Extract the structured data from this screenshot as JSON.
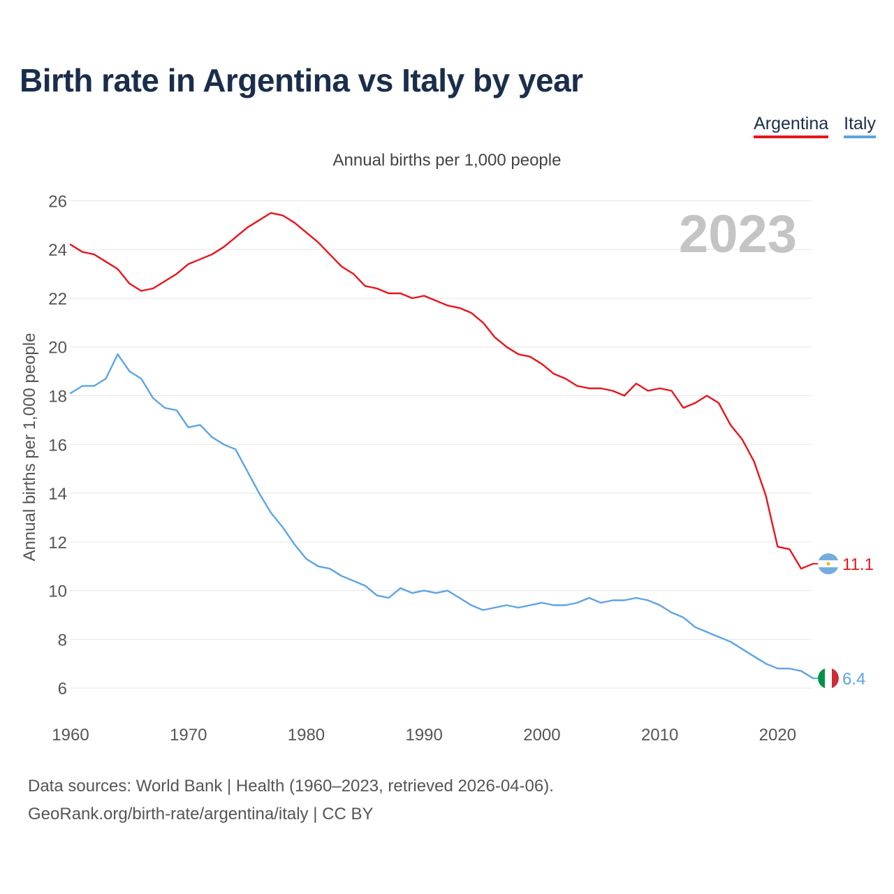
{
  "title": "Birth rate in Argentina vs Italy by year",
  "legend": [
    {
      "label": "Argentina",
      "color": "#e8141c"
    },
    {
      "label": "Italy",
      "color": "#5ba4e6"
    }
  ],
  "subtitle": "Annual births per 1,000 people",
  "footer": {
    "line1": "Data sources: World Bank | Health (1960–2023, retrieved 2026-04-06).",
    "line2": "GeoRank.org/birth-rate/argentina/italy | CC BY"
  },
  "chart_data": {
    "type": "line",
    "title": "Birth rate in Argentina vs Italy by year",
    "ylabel": "Annual births per 1,000 people",
    "xlabel": "",
    "year_label": "2023",
    "xlim": [
      1960,
      2023
    ],
    "ylim": [
      5,
      26.5
    ],
    "xticks": [
      1960,
      1970,
      1980,
      1990,
      2000,
      2010,
      2020
    ],
    "yticks": [
      6,
      8,
      10,
      12,
      14,
      16,
      18,
      20,
      22,
      24,
      26
    ],
    "grid": true,
    "legend_position": "top-right",
    "x": [
      1960,
      1961,
      1962,
      1963,
      1964,
      1965,
      1966,
      1967,
      1968,
      1969,
      1970,
      1971,
      1972,
      1973,
      1974,
      1975,
      1976,
      1977,
      1978,
      1979,
      1980,
      1981,
      1982,
      1983,
      1984,
      1985,
      1986,
      1987,
      1988,
      1989,
      1990,
      1991,
      1992,
      1993,
      1994,
      1995,
      1996,
      1997,
      1998,
      1999,
      2000,
      2001,
      2002,
      2003,
      2004,
      2005,
      2006,
      2007,
      2008,
      2009,
      2010,
      2011,
      2012,
      2013,
      2014,
      2015,
      2016,
      2017,
      2018,
      2019,
      2020,
      2021,
      2022,
      2023
    ],
    "series": [
      {
        "name": "Argentina",
        "color": "#e8141c",
        "end_label": "11.1",
        "values": [
          24.2,
          23.9,
          23.8,
          23.5,
          23.2,
          22.6,
          22.3,
          22.4,
          22.7,
          23.0,
          23.4,
          23.6,
          23.8,
          24.1,
          24.5,
          24.9,
          25.2,
          25.5,
          25.4,
          25.1,
          24.7,
          24.3,
          23.8,
          23.3,
          23.0,
          22.5,
          22.4,
          22.2,
          22.2,
          22.0,
          22.1,
          21.9,
          21.7,
          21.6,
          21.4,
          21.0,
          20.4,
          20.0,
          19.7,
          19.6,
          19.3,
          18.9,
          18.7,
          18.4,
          18.3,
          18.3,
          18.2,
          18.0,
          18.5,
          18.2,
          18.3,
          18.2,
          17.5,
          17.7,
          18.0,
          17.7,
          16.8,
          16.2,
          15.3,
          13.9,
          11.8,
          11.7,
          10.9,
          11.1
        ]
      },
      {
        "name": "Italy",
        "color": "#5ba4e6",
        "end_label": "6.4",
        "values": [
          18.1,
          18.4,
          18.4,
          18.7,
          19.7,
          19.0,
          18.7,
          17.9,
          17.5,
          17.4,
          16.7,
          16.8,
          16.3,
          16.0,
          15.8,
          14.9,
          14.0,
          13.2,
          12.6,
          11.9,
          11.3,
          11.0,
          10.9,
          10.6,
          10.4,
          10.2,
          9.8,
          9.7,
          10.1,
          9.9,
          10.0,
          9.9,
          10.0,
          9.7,
          9.4,
          9.2,
          9.3,
          9.4,
          9.3,
          9.4,
          9.5,
          9.4,
          9.4,
          9.5,
          9.7,
          9.5,
          9.6,
          9.6,
          9.7,
          9.6,
          9.4,
          9.1,
          8.9,
          8.5,
          8.3,
          8.1,
          7.9,
          7.6,
          7.3,
          7.0,
          6.8,
          6.8,
          6.7,
          6.4
        ]
      }
    ]
  }
}
